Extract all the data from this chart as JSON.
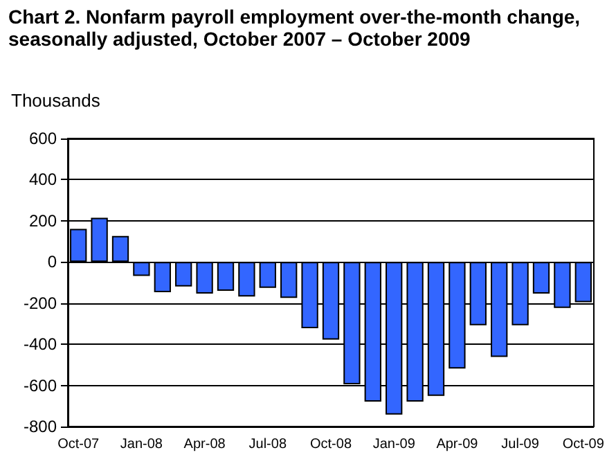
{
  "chart_data": {
    "type": "bar",
    "title": "Chart 2. Nonfarm payroll employment over-the-month change, seasonally adjusted, October 2007 – October 2009",
    "ylabel": "Thousands",
    "categories": [
      "Oct-07",
      null,
      null,
      "Jan-08",
      null,
      null,
      "Apr-08",
      null,
      null,
      "Jul-08",
      null,
      null,
      "Oct-08",
      null,
      null,
      "Jan-09",
      null,
      null,
      "Apr-09",
      null,
      null,
      "Jul-09",
      null,
      null,
      "Oct-09"
    ],
    "values": [
      161,
      215,
      126,
      -68,
      -147,
      -119,
      -154,
      -140,
      -168,
      -126,
      -175,
      -322,
      -378,
      -595,
      -679,
      -742,
      -679,
      -651,
      -518,
      -308,
      -462,
      -308,
      -154,
      -224,
      -196
    ],
    "color": "#3366ff",
    "ylim": [
      -800,
      600
    ],
    "yticks": [
      -800,
      -600,
      -400,
      -200,
      0,
      200,
      400,
      600
    ],
    "grid": "y"
  }
}
